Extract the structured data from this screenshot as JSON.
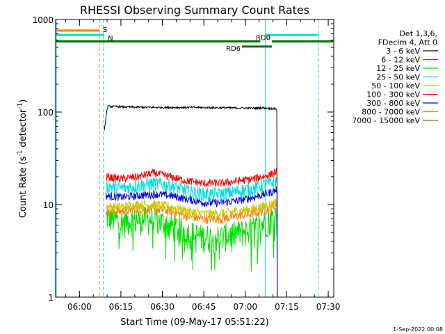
{
  "chart_data": {
    "type": "line",
    "title": "RHESSI Observing Summary Count Rates",
    "xlabel": "Start Time (09-May-17 05:51:22)",
    "ylabel_main": "Count Rate (s",
    "ylabel_sup1": "-1",
    "ylabel_mid": " detector",
    "ylabel_sup2": "-1",
    "ylabel_end": ")",
    "yscale": "log",
    "ylim": [
      1,
      1000
    ],
    "xlim": [
      5.8561,
      7.5333
    ],
    "x_ticks": [
      {
        "value": 6.0,
        "label": "06:00"
      },
      {
        "value": 6.25,
        "label": "06:15"
      },
      {
        "value": 6.5,
        "label": "06:30"
      },
      {
        "value": 6.75,
        "label": "06:45"
      },
      {
        "value": 7.0,
        "label": "07:00"
      },
      {
        "value": 7.25,
        "label": "07:15"
      },
      {
        "value": 7.5,
        "label": "07:30"
      }
    ],
    "y_ticks": [
      {
        "value": 1,
        "label": "1"
      },
      {
        "value": 10,
        "label": "10"
      },
      {
        "value": 100,
        "label": "100"
      },
      {
        "value": 1000,
        "label": "1000"
      }
    ],
    "legend_header": [
      "Det 1,3,6,",
      "FDecim 4, Att 0"
    ],
    "legend_position": "right",
    "series": [
      {
        "name": "3 - 6 keV",
        "color": "#000000",
        "x": [
          6.15,
          6.17,
          6.3,
          6.5,
          6.7,
          6.9,
          7.05,
          7.1,
          7.19
        ],
        "y": [
          62,
          115,
          113,
          112,
          112,
          111,
          110,
          111,
          108
        ]
      },
      {
        "name": "6 - 12 keV",
        "color": "#d000d0",
        "x": [],
        "y": []
      },
      {
        "name": "12 - 25 keV",
        "color": "#00e000",
        "x": [
          6.16,
          6.25,
          6.35,
          6.45,
          6.55,
          6.65,
          6.75,
          6.85,
          6.95,
          7.05,
          7.15,
          7.19
        ],
        "y": [
          7.5,
          6.5,
          7.0,
          7.0,
          6.0,
          5.0,
          4.5,
          4.5,
          5.0,
          5.5,
          7.0,
          8.0
        ]
      },
      {
        "name": "25 - 50 keV",
        "color": "#00e0e0",
        "x": [
          6.16,
          6.25,
          6.35,
          6.45,
          6.55,
          6.65,
          6.75,
          6.85,
          6.95,
          7.05,
          7.15,
          7.19
        ],
        "y": [
          16,
          15,
          16,
          17,
          16,
          14,
          13,
          13,
          14,
          15,
          17,
          18
        ]
      },
      {
        "name": "50 - 100 keV",
        "color": "#c8c800",
        "x": [
          6.16,
          6.25,
          6.35,
          6.45,
          6.55,
          6.65,
          6.75,
          6.85,
          6.95,
          7.05,
          7.15,
          7.19
        ],
        "y": [
          9.5,
          9.5,
          10,
          10,
          9.5,
          8.5,
          8.0,
          8.0,
          8.5,
          9.0,
          10,
          11
        ]
      },
      {
        "name": "100 - 300 keV",
        "color": "#ff0000",
        "x": [
          6.16,
          6.25,
          6.35,
          6.45,
          6.55,
          6.65,
          6.75,
          6.85,
          6.95,
          7.05,
          7.15,
          7.19
        ],
        "y": [
          20,
          19,
          20,
          22,
          20,
          18,
          17,
          17,
          18,
          19,
          21,
          23
        ]
      },
      {
        "name": "300 - 800 keV",
        "color": "#0000e0",
        "x": [
          6.16,
          6.25,
          6.35,
          6.45,
          6.55,
          6.65,
          6.75,
          6.85,
          6.95,
          7.05,
          7.15,
          7.19
        ],
        "y": [
          12.5,
          12,
          12.5,
          13,
          12.5,
          11.5,
          10.5,
          10.5,
          11,
          12,
          13.5,
          14.5
        ]
      },
      {
        "name": "800 - 7000 keV",
        "color": "#ff8000",
        "x": [
          6.16,
          6.25,
          6.35,
          6.45,
          6.55,
          6.65,
          6.75,
          6.85,
          6.95,
          7.05,
          7.15,
          7.19
        ],
        "y": [
          8.5,
          8.5,
          9.0,
          9.0,
          8.5,
          7.5,
          7.0,
          7.0,
          7.5,
          8.0,
          9.0,
          10
        ]
      },
      {
        "name": "7000 - 15000 keV",
        "color": "#a06000",
        "x": [],
        "y": []
      }
    ],
    "vertical_lines": [
      {
        "x": 5.86,
        "color": "#00e0e0",
        "style": "solid"
      },
      {
        "x": 6.12,
        "color": "#ff8000",
        "style": "dashed"
      },
      {
        "x": 6.145,
        "color": "#00e0e0",
        "style": "dashed"
      },
      {
        "x": 7.12,
        "color": "#00e0e0",
        "style": "solid"
      },
      {
        "x": 7.44,
        "color": "#00e0e0",
        "style": "dashed"
      }
    ],
    "state_bars": [
      {
        "label": "S",
        "color": "#ff8000",
        "x0": 5.86,
        "x1": 6.12,
        "y": 760
      },
      {
        "label": "N",
        "color": "#00e0e0",
        "x0": 5.86,
        "x1": 6.15,
        "y": 680
      },
      {
        "label": "",
        "color": "#00e0e0",
        "x0": 7.12,
        "x1": 7.44,
        "y": 680
      },
      {
        "label": "",
        "color": "#007000",
        "x0": 5.86,
        "x1": 7.09,
        "y": 580
      },
      {
        "label": "RD0",
        "color": "#007000",
        "x0": 7.16,
        "x1": 7.53,
        "y": 580
      },
      {
        "label": "RD6",
        "color": "#007000",
        "x0": 6.98,
        "x1": 7.16,
        "y": 510
      }
    ],
    "grid": false
  },
  "footer_date": "1-Sep-2022 00:08"
}
